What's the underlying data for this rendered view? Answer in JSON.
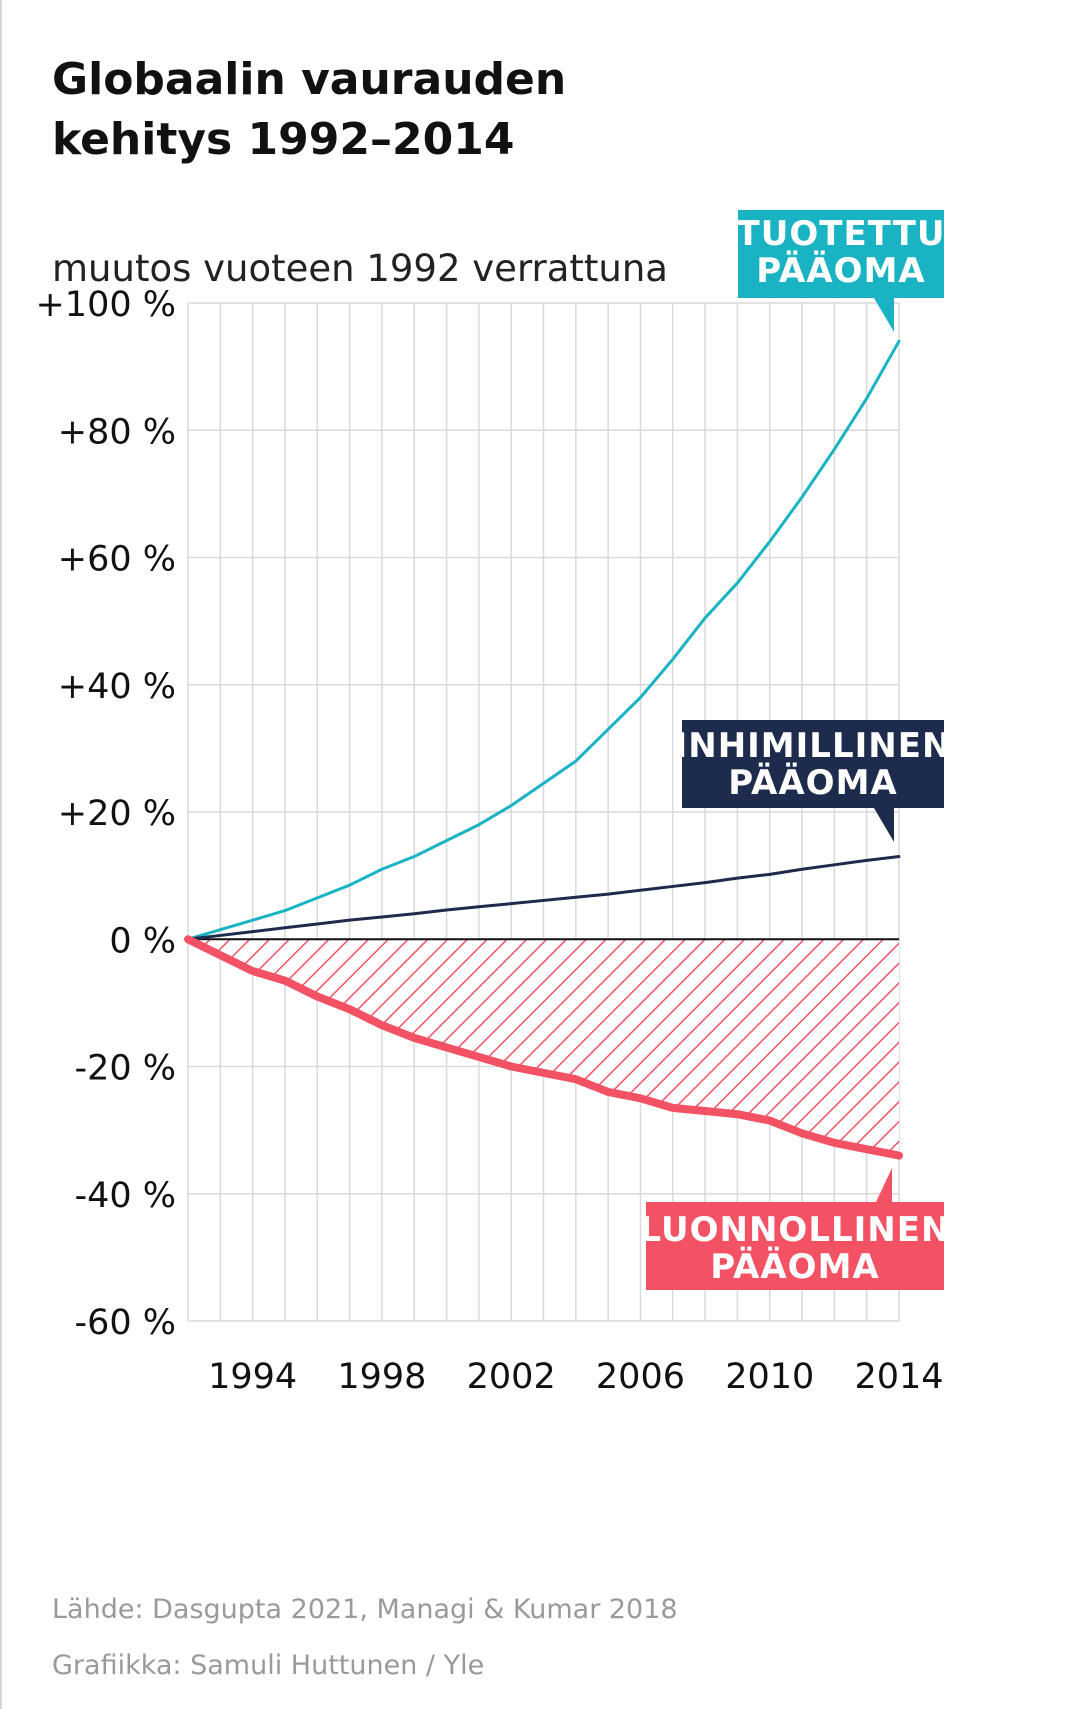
{
  "title": "Globaalin vaurauden\nkehitys 1992–2014",
  "subtitle": "muutos vuoteen 1992 verrattuna",
  "source": "Lähde: Dasgupta 2021, Managi & Kumar 2018",
  "credit": "Grafiikka: Samuli Huttunen / Yle",
  "colors": {
    "produced": "#1ab3c4",
    "human": "#1d2b4c",
    "natural": "#f25264",
    "grid": "#d9d9d9",
    "zero": "#111111"
  },
  "chart_data": {
    "type": "line",
    "x": [
      1992,
      1993,
      1994,
      1995,
      1996,
      1997,
      1998,
      1999,
      2000,
      2001,
      2002,
      2003,
      2004,
      2005,
      2006,
      2007,
      2008,
      2009,
      2010,
      2011,
      2012,
      2013,
      2014
    ],
    "xticks": [
      "1994",
      "1998",
      "2002",
      "2006",
      "2010",
      "2014"
    ],
    "xtick_values": [
      1994,
      1998,
      2002,
      2006,
      2010,
      2014
    ],
    "xlim": [
      1992,
      2014
    ],
    "ylim": [
      -60,
      100
    ],
    "yticks": [
      "+100 %",
      "+80 %",
      "+60 %",
      "+40 %",
      "+20 %",
      "0 %",
      "-20 %",
      "-40 %",
      "-60 %"
    ],
    "ytick_values": [
      100,
      80,
      60,
      40,
      20,
      0,
      -20,
      -40,
      -60
    ],
    "grid": true,
    "series": [
      {
        "name": "TUOTETTU PÄÄOMA",
        "color": "#1ab3c4",
        "values": [
          0,
          1.5,
          3,
          4.5,
          6.5,
          8.5,
          11,
          13,
          15.5,
          18,
          21,
          24.5,
          28,
          33,
          38,
          44,
          50.5,
          56,
          62.5,
          69.5,
          77,
          85,
          94
        ]
      },
      {
        "name": "INHIMILLINEN PÄÄOMA",
        "color": "#1d2b4c",
        "values": [
          0,
          0.6,
          1.2,
          1.8,
          2.4,
          3.0,
          3.5,
          4.0,
          4.6,
          5.1,
          5.6,
          6.1,
          6.6,
          7.1,
          7.7,
          8.3,
          8.9,
          9.6,
          10.2,
          11.0,
          11.7,
          12.4,
          13
        ]
      },
      {
        "name": "LUONNOLLINEN PÄÄOMA",
        "color": "#f25264",
        "values": [
          0,
          -2.5,
          -5,
          -6.5,
          -9,
          -11,
          -13.5,
          -15.5,
          -17,
          -18.5,
          -20,
          -21,
          -22,
          -24,
          -25,
          -26.5,
          -27,
          -27.5,
          -28.5,
          -30.5,
          -32,
          -33,
          -34
        ]
      }
    ]
  }
}
